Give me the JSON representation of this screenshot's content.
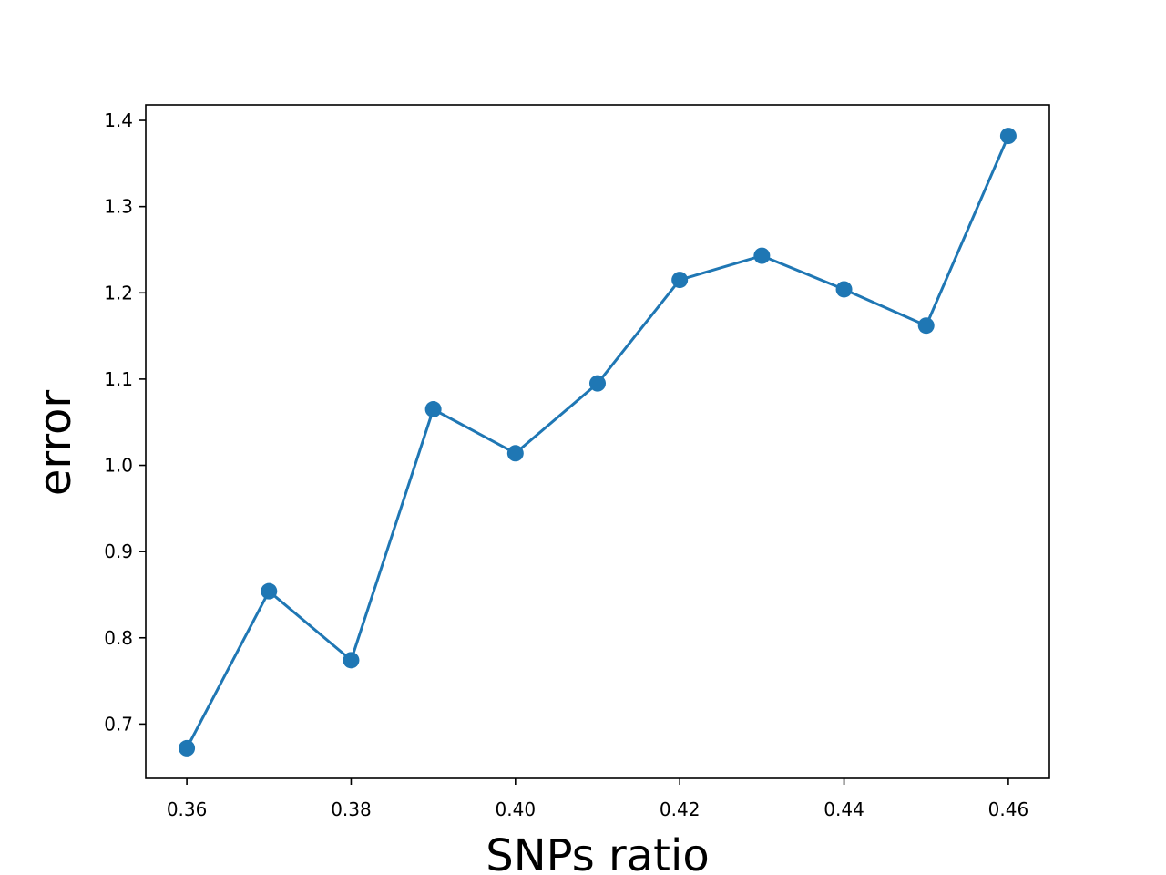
{
  "chart_data": {
    "type": "line",
    "title": "",
    "xlabel": "SNPs ratio",
    "ylabel": "error",
    "xlim": [
      0.355,
      0.465
    ],
    "ylim": [
      0.637,
      1.418
    ],
    "xticks": [
      0.36,
      0.38,
      0.4,
      0.42,
      0.44,
      0.46
    ],
    "xtick_labels": [
      "0.36",
      "0.38",
      "0.40",
      "0.42",
      "0.44",
      "0.46"
    ],
    "yticks": [
      0.7,
      0.8,
      0.9,
      1.0,
      1.1,
      1.2,
      1.3,
      1.4
    ],
    "ytick_labels": [
      "0.7",
      "0.8",
      "0.9",
      "1.0",
      "1.1",
      "1.2",
      "1.3",
      "1.4"
    ],
    "grid": false,
    "series": [
      {
        "color": "#1f77b4",
        "marker": "circle",
        "x": [
          0.36,
          0.37,
          0.38,
          0.39,
          0.4,
          0.41,
          0.42,
          0.43,
          0.44,
          0.45,
          0.46
        ],
        "y": [
          0.672,
          0.854,
          0.774,
          1.065,
          1.014,
          1.095,
          1.215,
          1.243,
          1.204,
          1.162,
          1.382
        ]
      }
    ]
  }
}
